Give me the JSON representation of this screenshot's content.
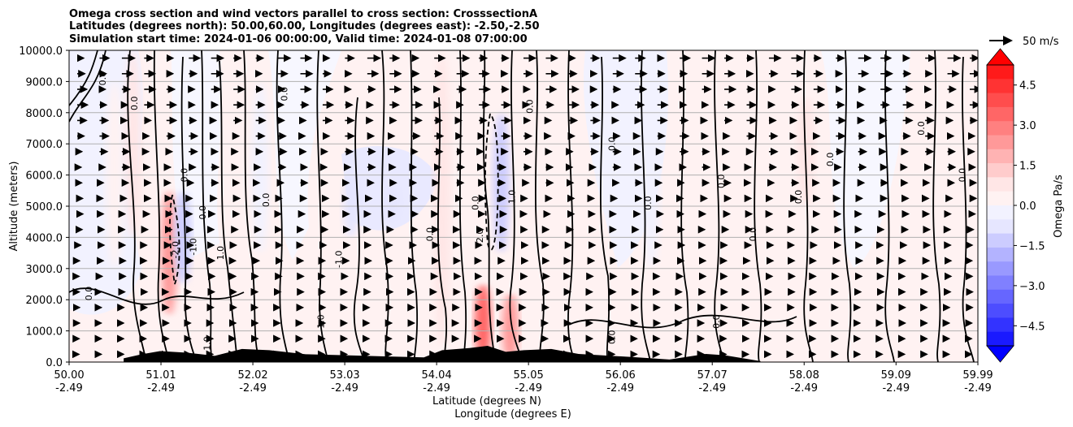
{
  "chart_data": {
    "type": "contourf",
    "title_lines": [
      "Omega cross section and wind vectors parallel to cross section: CrosssectionA",
      "Latitudes (degrees north): 50.00,60.00, Longitudes (degrees east): -2.50,-2.50",
      "Simulation start time: 2024-01-06 00:00:00, Valid time: 2024-01-08 07:00:00"
    ],
    "ylabel": "Altitude (meters)",
    "xlabel_lines": [
      "Latitude (degrees N)",
      "Longitude (degrees E)"
    ],
    "ylim": [
      0,
      10000
    ],
    "xlim": [
      50.0,
      59.99
    ],
    "y_ticks": [
      {
        "value": 0,
        "label": "0.0"
      },
      {
        "value": 1000,
        "label": "1000.0"
      },
      {
        "value": 2000,
        "label": "2000.0"
      },
      {
        "value": 3000,
        "label": "3000.0"
      },
      {
        "value": 4000,
        "label": "4000.0"
      },
      {
        "value": 5000,
        "label": "5000.0"
      },
      {
        "value": 6000,
        "label": "6000.0"
      },
      {
        "value": 7000,
        "label": "7000.0"
      },
      {
        "value": 8000,
        "label": "8000.0"
      },
      {
        "value": 9000,
        "label": "9000.0"
      },
      {
        "value": 10000,
        "label": "10000.0"
      }
    ],
    "x_ticks": [
      {
        "value": 50.0,
        "lat": "50.00",
        "lon": "-2.49"
      },
      {
        "value": 51.01,
        "lat": "51.01",
        "lon": "-2.49"
      },
      {
        "value": 52.02,
        "lat": "52.02",
        "lon": "-2.49"
      },
      {
        "value": 53.03,
        "lat": "53.03",
        "lon": "-2.49"
      },
      {
        "value": 54.04,
        "lat": "54.04",
        "lon": "-2.49"
      },
      {
        "value": 55.05,
        "lat": "55.05",
        "lon": "-2.49"
      },
      {
        "value": 56.06,
        "lat": "56.06",
        "lon": "-2.49"
      },
      {
        "value": 57.07,
        "lat": "57.07",
        "lon": "-2.49"
      },
      {
        "value": 58.08,
        "lat": "58.08",
        "lon": "-2.49"
      },
      {
        "value": 59.09,
        "lat": "59.09",
        "lon": "-2.49"
      },
      {
        "value": 59.99,
        "lat": "59.99",
        "lon": "-2.49"
      }
    ],
    "colorbar": {
      "label": "Omega Pa/s",
      "range": [
        -5.25,
        5.25
      ],
      "ticks": [
        {
          "value": 4.5,
          "label": "4.5"
        },
        {
          "value": 3.0,
          "label": "3.0"
        },
        {
          "value": 1.5,
          "label": "1.5"
        },
        {
          "value": 0.0,
          "label": "0.0"
        },
        {
          "value": -1.5,
          "label": "−1.5"
        },
        {
          "value": -3.0,
          "label": "−3.0"
        },
        {
          "value": -4.5,
          "label": "−4.5"
        }
      ],
      "colors_top_to_bottom": [
        "#ff1a1a",
        "#ff3333",
        "#ff4d4d",
        "#ff6666",
        "#ff8080",
        "#ff9999",
        "#ffb3b3",
        "#ffcccc",
        "#ffe6e6",
        "#fff2f2",
        "#f2f2ff",
        "#e6e6ff",
        "#ccccff",
        "#b3b3ff",
        "#9999ff",
        "#8080ff",
        "#6666ff",
        "#4d4dff",
        "#3333ff",
        "#1a1aff"
      ],
      "extend_max_color": "#ff0000",
      "extend_min_color": "#0000ff"
    },
    "wind_reference": {
      "speed": 50,
      "label": "50 m/s"
    },
    "field_patches": [
      {
        "lat": 50.5,
        "z0": 3000,
        "z1": 9000,
        "omega": 0.3
      },
      {
        "lat": 50.7,
        "z0": 4000,
        "z1": 10000,
        "omega": 0.9
      },
      {
        "lat": 51.1,
        "z0": 1500,
        "z1": 5500,
        "omega": 2.5
      },
      {
        "lat": 51.25,
        "z0": 2500,
        "z1": 5500,
        "omega": -1.2
      },
      {
        "lat": 52.1,
        "z0": 3500,
        "z1": 9000,
        "omega": -0.3
      },
      {
        "lat": 53.1,
        "z0": 4000,
        "z1": 6000,
        "omega": -0.8
      },
      {
        "lat": 53.55,
        "z0": 4500,
        "z1": 5700,
        "omega": -0.9
      },
      {
        "lat": 54.1,
        "z0": 500,
        "z1": 10000,
        "omega": 0.8
      },
      {
        "lat": 54.55,
        "z0": 0,
        "z1": 2500,
        "omega": 3.5
      },
      {
        "lat": 54.75,
        "z0": 3500,
        "z1": 8000,
        "omega": -1.3
      },
      {
        "lat": 54.85,
        "z0": 0,
        "z1": 2200,
        "omega": 2.2
      },
      {
        "lat": 56.4,
        "z0": 3000,
        "z1": 9000,
        "omega": -0.2
      },
      {
        "lat": 58.1,
        "z0": 5000,
        "z1": 8500,
        "omega": 0.6
      },
      {
        "lat": 59.5,
        "z0": 5000,
        "z1": 9500,
        "omega": 0.3
      }
    ],
    "contour_level_labels": [
      "0.0",
      "1.0",
      "-1.0",
      "2.0",
      "-2.0"
    ],
    "contour_labels": [
      {
        "lat": 50.4,
        "z": 9100,
        "text": "0.0"
      },
      {
        "lat": 50.75,
        "z": 8300,
        "text": "0.0"
      },
      {
        "lat": 51.3,
        "z": 6000,
        "text": "0.0"
      },
      {
        "lat": 51.5,
        "z": 4800,
        "text": "0.0"
      },
      {
        "lat": 51.4,
        "z": 3700,
        "text": "-1.0"
      },
      {
        "lat": 51.2,
        "z": 3600,
        "text": "-2.0"
      },
      {
        "lat": 51.7,
        "z": 3500,
        "text": "1.0"
      },
      {
        "lat": 52.2,
        "z": 5200,
        "text": "0.0"
      },
      {
        "lat": 52.4,
        "z": 8600,
        "text": "0.0"
      },
      {
        "lat": 53.0,
        "z": 3300,
        "text": "-1.0"
      },
      {
        "lat": 52.8,
        "z": 1300,
        "text": "1.0"
      },
      {
        "lat": 54.0,
        "z": 4100,
        "text": "0.0"
      },
      {
        "lat": 54.5,
        "z": 5100,
        "text": "0.0"
      },
      {
        "lat": 54.55,
        "z": 4000,
        "text": "-2.0"
      },
      {
        "lat": 54.9,
        "z": 5300,
        "text": "1.0"
      },
      {
        "lat": 55.1,
        "z": 8200,
        "text": "0.0"
      },
      {
        "lat": 56.0,
        "z": 7000,
        "text": "0.0"
      },
      {
        "lat": 56.4,
        "z": 5100,
        "text": "0.0"
      },
      {
        "lat": 57.2,
        "z": 5800,
        "text": "0.0"
      },
      {
        "lat": 57.55,
        "z": 4100,
        "text": "0.0"
      },
      {
        "lat": 58.05,
        "z": 5300,
        "text": "0.0"
      },
      {
        "lat": 58.4,
        "z": 6500,
        "text": "0.0"
      },
      {
        "lat": 59.4,
        "z": 7500,
        "text": "0.0"
      },
      {
        "lat": 59.85,
        "z": 6000,
        "text": "0.0"
      },
      {
        "lat": 57.15,
        "z": 1300,
        "text": "0.0"
      },
      {
        "lat": 56.0,
        "z": 800,
        "text": "0.0"
      },
      {
        "lat": 50.25,
        "z": 2200,
        "text": "0.0"
      },
      {
        "lat": 51.55,
        "z": 600,
        "text": "1.0"
      }
    ],
    "terrain": {
      "lat": [
        50.6,
        50.8,
        51.0,
        51.3,
        51.6,
        51.9,
        52.2,
        52.6,
        53.0,
        53.5,
        53.9,
        54.1,
        54.4,
        54.6,
        54.8,
        55.0,
        55.3,
        55.6,
        56.2,
        56.6,
        57.0,
        57.2,
        57.6
      ],
      "height": [
        120,
        250,
        350,
        300,
        200,
        420,
        380,
        250,
        220,
        180,
        150,
        380,
        450,
        520,
        330,
        380,
        420,
        260,
        160,
        80,
        260,
        220,
        30
      ]
    }
  }
}
